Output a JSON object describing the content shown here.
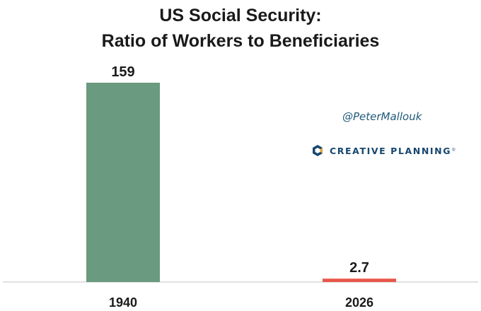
{
  "chart_data": {
    "type": "bar",
    "title": "US Social Security:\nRatio of Workers to Beneficiaries",
    "title_lines": [
      "US Social Security:",
      "Ratio of Workers to Beneficiaries"
    ],
    "categories": [
      "1940",
      "2026"
    ],
    "values": [
      159,
      2.7
    ],
    "value_labels": [
      "159",
      "2.7"
    ],
    "bar_colors": [
      "#6a9a7f",
      "#e8574a"
    ],
    "ylim": [
      0,
      159
    ],
    "grid": false,
    "xlabel": "",
    "ylabel": ""
  },
  "annotations": {
    "handle": "@PeterMallouk",
    "brand_name": "CREATIVE PLANNING",
    "brand_tm": "®",
    "brand_color": "#16466e"
  }
}
